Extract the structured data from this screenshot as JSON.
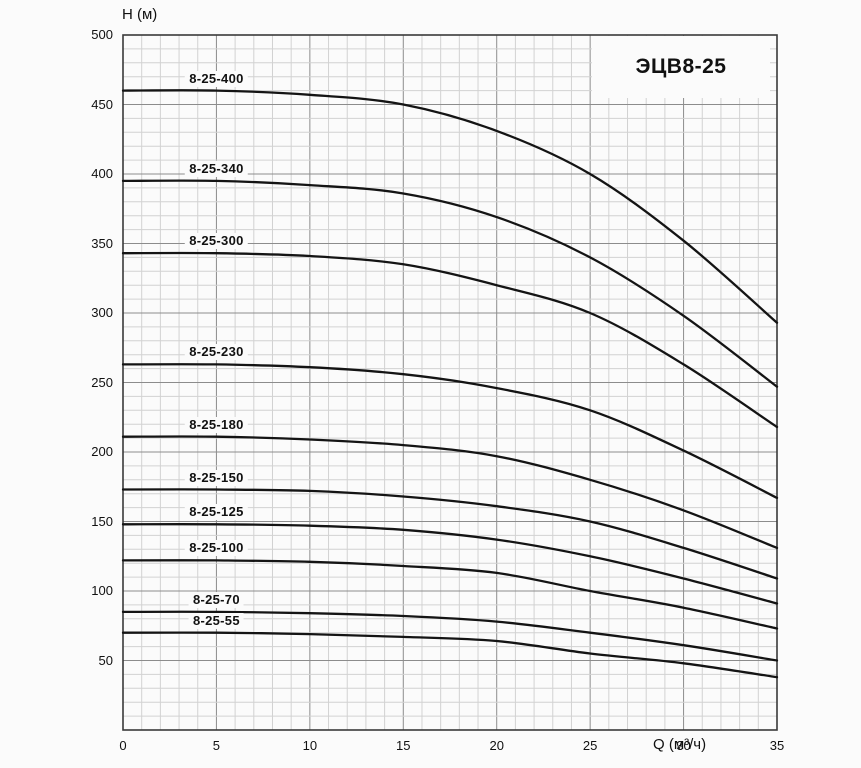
{
  "chart_data": {
    "type": "line",
    "title": "ЭЦВ8-25",
    "xlabel": "Q (м³/ч)",
    "ylabel": "H (м)",
    "xlim": [
      0,
      35
    ],
    "ylim": [
      0,
      500
    ],
    "x_ticks": [
      0,
      5,
      10,
      15,
      20,
      25,
      30,
      35
    ],
    "y_ticks": [
      50,
      100,
      150,
      200,
      250,
      300,
      350,
      400,
      450,
      500
    ],
    "grid": "fine graph-paper grid: minor x step 1, minor y step 10, major x step 5, major y step 50",
    "legend_position": "labels above each curve at left side of plot",
    "x": [
      0,
      5,
      10,
      15,
      20,
      25,
      30,
      35
    ],
    "series": [
      {
        "name": "8-25-400",
        "values": [
          460,
          460,
          457,
          450,
          431,
          400,
          352,
          293
        ]
      },
      {
        "name": "8-25-340",
        "values": [
          395,
          395,
          392,
          386,
          369,
          340,
          298,
          247
        ]
      },
      {
        "name": "8-25-300",
        "values": [
          343,
          343,
          341,
          335,
          320,
          300,
          263,
          218
        ]
      },
      {
        "name": "8-25-230",
        "values": [
          263,
          263,
          261,
          256,
          246,
          230,
          201,
          167
        ]
      },
      {
        "name": "8-25-180",
        "values": [
          211,
          211,
          209,
          205,
          197,
          180,
          158,
          131
        ]
      },
      {
        "name": "8-25-150",
        "values": [
          173,
          173,
          172,
          168,
          161,
          150,
          131,
          109
        ]
      },
      {
        "name": "8-25-125",
        "values": [
          148,
          148,
          147,
          144,
          137,
          125,
          109,
          91
        ]
      },
      {
        "name": "8-25-100",
        "values": [
          122,
          122,
          121,
          118,
          113,
          100,
          88,
          73
        ]
      },
      {
        "name": "8-25-70",
        "values": [
          85,
          85,
          84,
          82,
          78,
          70,
          61,
          50
        ]
      },
      {
        "name": "8-25-55",
        "values": [
          70,
          70,
          69,
          67,
          64,
          55,
          48,
          38
        ]
      }
    ],
    "line_color": "#141414",
    "minor_grid_color": "#d2d2d2",
    "major_grid_color": "#8c8c8c",
    "border_color": "#3a3a3a"
  }
}
